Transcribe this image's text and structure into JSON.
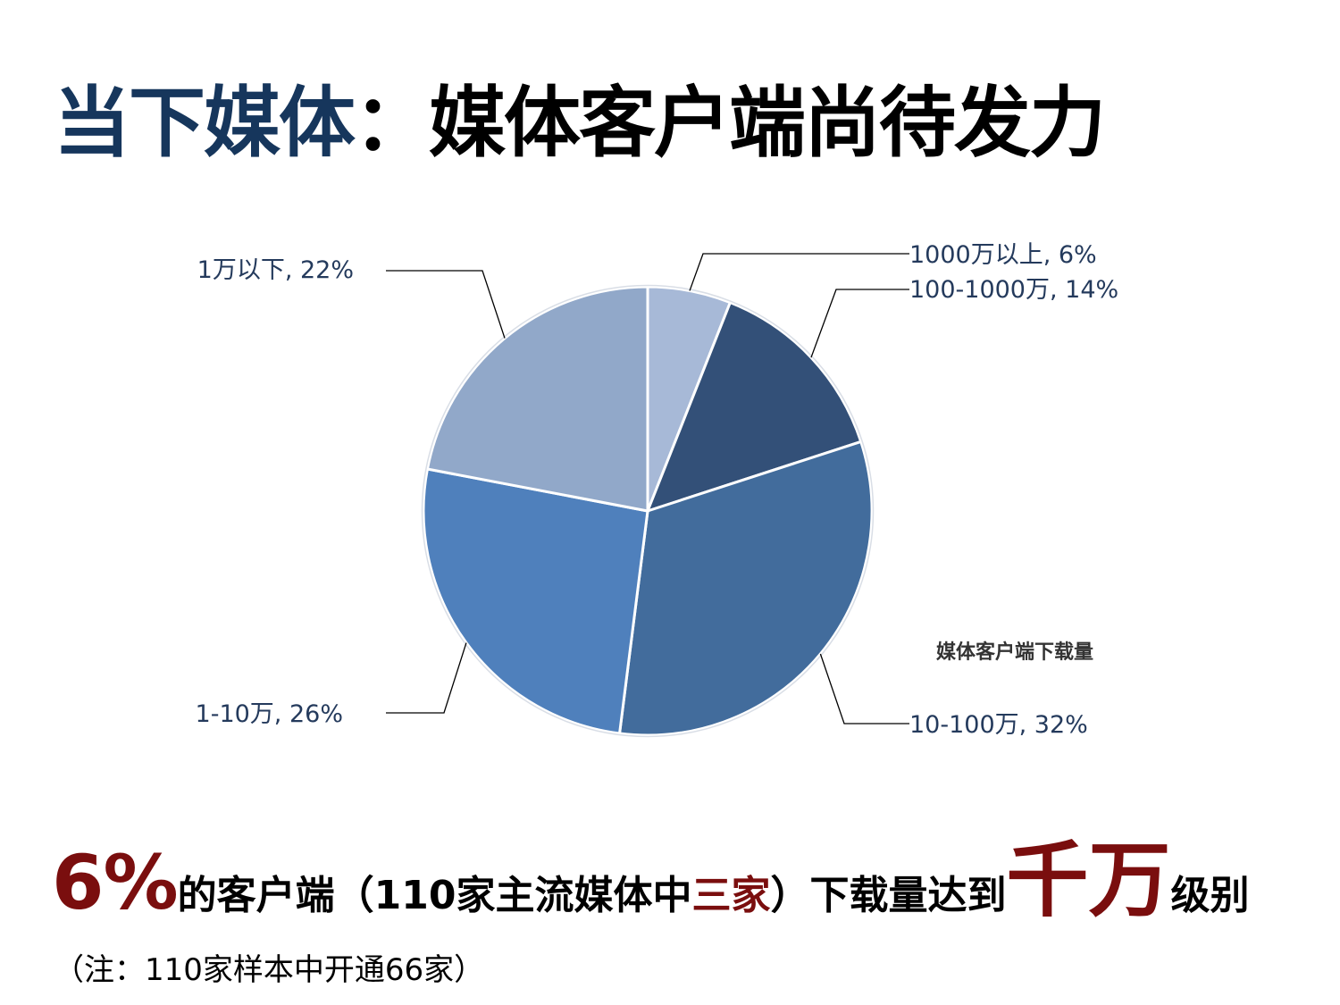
{
  "title": {
    "part1": "当下媒体",
    "part2": "：媒体客户端尚待发力"
  },
  "chart_data": {
    "type": "pie",
    "title": "媒体客户端下载量",
    "slices": [
      {
        "label": "1000万以上",
        "value": 6,
        "text": "1000万以上, 6%",
        "color": "#a7b9d7"
      },
      {
        "label": "100-1000万",
        "value": 14,
        "text": "100-1000万, 14%",
        "color": "#335078"
      },
      {
        "label": "10-100万",
        "value": 32,
        "text": "10-100万, 32%",
        "color": "#426c9c"
      },
      {
        "label": "1-10万",
        "value": 26,
        "text": "1-10万, 26%",
        "color": "#4f80bc"
      },
      {
        "label": "1万以下",
        "value": 22,
        "text": "1万以下, 22%",
        "color": "#91a8c9"
      }
    ]
  },
  "headline": {
    "pct": "6%",
    "t1": "的客户端（110家主流媒体中",
    "t2": "三家",
    "t3": "）下载量达到",
    "t4": "千万",
    "t5": "级别"
  },
  "note": "（注：110家样本中开通66家）"
}
